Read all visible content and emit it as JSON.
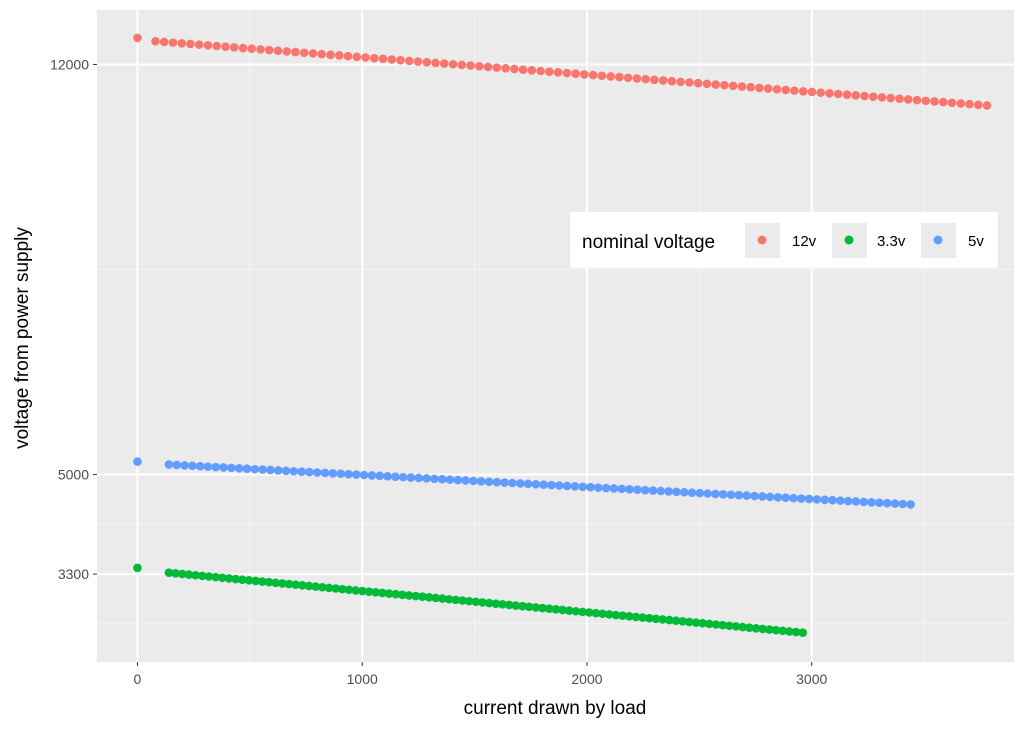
{
  "chart_data": {
    "type": "scatter",
    "xlabel": "current drawn by load",
    "ylabel": "voltage from power supply",
    "xlim": [
      -180,
      3900
    ],
    "ylim": [
      1800,
      12930
    ],
    "x_ticks": [
      0,
      1000,
      2000,
      3000
    ],
    "x_tick_labels": [
      "0",
      "1000",
      "2000",
      "3000"
    ],
    "y_ticks": [
      3300,
      5000,
      12000
    ],
    "y_tick_labels": [
      "3300",
      "5000",
      "12000"
    ],
    "y_minor_gridlines": [
      2450,
      4150,
      8500
    ],
    "x_minor_gridlines": [
      500,
      1500,
      2500,
      3500
    ],
    "grid": true,
    "legend": {
      "title": "nominal voltage",
      "position": "right",
      "entries": [
        {
          "label": "12v",
          "color": "#F8766D"
        },
        {
          "label": "3.3v",
          "color": "#00BA38"
        },
        {
          "label": "5v",
          "color": "#619CFF"
        }
      ]
    },
    "series": [
      {
        "name": "12v",
        "color": "#F8766D",
        "x_start": 0,
        "x_end": 3780,
        "y_start": 12420,
        "y_end": 11300,
        "outlier_gap": 80
      },
      {
        "name": "5v",
        "color": "#619CFF",
        "x_start": 0,
        "x_end": 3440,
        "y_start": 5200,
        "y_end": 4490,
        "outlier_gap": 140
      },
      {
        "name": "3.3v",
        "color": "#00BA38",
        "x_start": 0,
        "x_end": 2960,
        "y_start": 3375,
        "y_end": 2300,
        "outlier_gap": 140
      }
    ]
  }
}
